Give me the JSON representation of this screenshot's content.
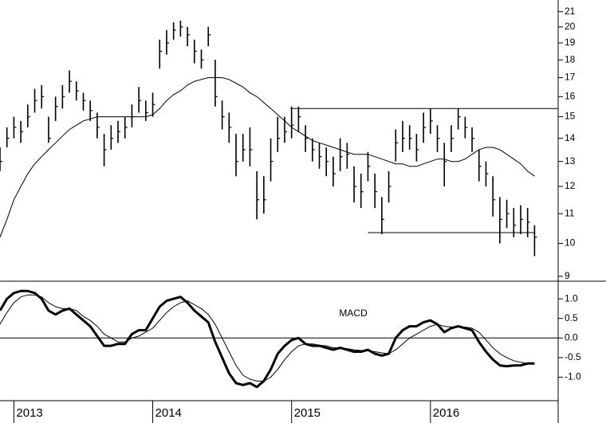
{
  "chart_data": [
    {
      "type": "ohlc",
      "scale": "log",
      "color": "#000000",
      "x": [
        2012.9,
        2012.95,
        2013.0,
        2013.05,
        2013.1,
        2013.15,
        2013.2,
        2013.25,
        2013.3,
        2013.35,
        2013.4,
        2013.45,
        2013.5,
        2013.55,
        2013.6,
        2013.65,
        2013.7,
        2013.75,
        2013.8,
        2013.85,
        2013.9,
        2013.95,
        2014.0,
        2014.05,
        2014.1,
        2014.15,
        2014.2,
        2014.25,
        2014.3,
        2014.35,
        2014.4,
        2014.45,
        2014.5,
        2014.55,
        2014.6,
        2014.65,
        2014.7,
        2014.75,
        2014.8,
        2014.85,
        2014.9,
        2014.95,
        2015.0,
        2015.05,
        2015.1,
        2015.15,
        2015.2,
        2015.25,
        2015.3,
        2015.35,
        2015.4,
        2015.45,
        2015.5,
        2015.55,
        2015.6,
        2015.65,
        2015.7,
        2015.75,
        2015.8,
        2015.85,
        2015.9,
        2015.95,
        2016.0,
        2016.05,
        2016.1,
        2016.15,
        2016.2,
        2016.25,
        2016.3,
        2016.35,
        2016.4,
        2016.45,
        2016.5,
        2016.55,
        2016.6,
        2016.65,
        2016.7,
        2016.75
      ],
      "high": [
        13.6,
        14.5,
        15.0,
        14.8,
        15.6,
        16.4,
        16.6,
        15.0,
        16.0,
        16.6,
        17.4,
        16.8,
        16.2,
        15.8,
        15.2,
        14.2,
        14.6,
        14.8,
        15.0,
        15.6,
        16.5,
        15.8,
        16.2,
        19.2,
        19.8,
        20.3,
        20.4,
        20.0,
        19.2,
        18.6,
        20.0,
        18.0,
        15.8,
        15.2,
        14.2,
        14.2,
        14.5,
        12.6,
        12.4,
        14.0,
        15.0,
        15.0,
        15.5,
        15.5,
        14.6,
        14.0,
        13.8,
        13.6,
        13.2,
        14.0,
        13.8,
        12.8,
        12.5,
        13.4,
        12.5,
        11.6,
        12.6,
        14.4,
        14.8,
        14.6,
        14.2,
        15.2,
        15.4,
        14.6,
        13.8,
        14.6,
        15.4,
        15.0,
        14.5,
        13.5,
        13.0,
        12.4,
        11.6,
        11.5,
        11.2,
        11.3,
        11.2,
        10.6
      ],
      "low": [
        12.6,
        13.6,
        14.0,
        13.8,
        14.5,
        15.2,
        15.4,
        13.8,
        14.8,
        15.4,
        16.2,
        15.8,
        15.3,
        14.8,
        14.0,
        12.8,
        13.5,
        13.8,
        14.0,
        14.5,
        15.2,
        14.8,
        15.0,
        17.5,
        18.3,
        19.2,
        19.4,
        18.8,
        17.8,
        17.5,
        18.8,
        15.5,
        14.4,
        13.8,
        12.4,
        13.0,
        12.8,
        10.8,
        11.0,
        12.2,
        13.4,
        13.8,
        14.0,
        14.3,
        13.4,
        13.0,
        12.7,
        12.4,
        12.0,
        12.6,
        12.7,
        11.4,
        11.2,
        12.2,
        11.2,
        10.3,
        11.4,
        13.0,
        13.4,
        13.5,
        13.0,
        13.8,
        14.2,
        13.4,
        12.0,
        13.4,
        14.4,
        14.0,
        13.4,
        12.2,
        12.0,
        10.9,
        10.0,
        10.5,
        10.2,
        10.3,
        10.2,
        9.6
      ],
      "close": [
        13.0,
        14.0,
        14.5,
        14.3,
        15.0,
        15.8,
        16.0,
        14.0,
        15.5,
        16.0,
        16.8,
        16.3,
        15.8,
        15.3,
        14.5,
        13.5,
        14.0,
        14.3,
        14.5,
        15.0,
        15.8,
        15.2,
        15.6,
        18.5,
        19.0,
        19.8,
        20.0,
        19.5,
        18.5,
        18.0,
        19.5,
        16.0,
        15.0,
        14.5,
        13.0,
        13.5,
        13.5,
        11.5,
        11.5,
        13.0,
        14.0,
        14.3,
        14.6,
        15.0,
        14.0,
        13.5,
        13.2,
        13.0,
        12.5,
        13.2,
        13.3,
        12.0,
        11.8,
        12.8,
        11.8,
        10.8,
        12.0,
        13.8,
        14.0,
        14.0,
        13.5,
        14.5,
        14.8,
        14.0,
        13.0,
        14.0,
        15.0,
        14.5,
        14.0,
        12.8,
        12.5,
        11.5,
        10.8,
        11.0,
        10.6,
        10.8,
        10.7,
        10.2
      ],
      "moving_average": [
        10.2,
        10.8,
        11.5,
        12.0,
        12.5,
        12.9,
        13.2,
        13.5,
        13.8,
        14.1,
        14.4,
        14.6,
        14.8,
        14.9,
        15.0,
        15.0,
        15.0,
        15.0,
        15.0,
        15.0,
        15.0,
        15.0,
        15.1,
        15.4,
        15.8,
        16.1,
        16.3,
        16.6,
        16.8,
        16.9,
        17.0,
        17.0,
        17.0,
        16.9,
        16.7,
        16.5,
        16.2,
        16.0,
        15.7,
        15.4,
        15.1,
        14.8,
        14.5,
        14.3,
        14.1,
        13.9,
        13.8,
        13.7,
        13.6,
        13.5,
        13.4,
        13.3,
        13.3,
        13.3,
        13.2,
        13.1,
        13.0,
        12.9,
        12.9,
        12.8,
        12.8,
        12.9,
        13.0,
        13.1,
        13.1,
        13.0,
        13.0,
        13.1,
        13.3,
        13.5,
        13.6,
        13.6,
        13.5,
        13.3,
        13.1,
        12.9,
        12.6,
        12.4
      ],
      "hlines": [
        {
          "value": 15.4,
          "from": 2014.99,
          "to": 2016.92
        },
        {
          "value": 10.35,
          "from": 2015.55,
          "to": 2016.75
        }
      ],
      "xlim": [
        2012.9,
        2016.92
      ],
      "ylim": [
        8.86,
        21.8
      ],
      "yticks": [
        9,
        10,
        11,
        12,
        13,
        14,
        15,
        16,
        17,
        18,
        19,
        20,
        21
      ]
    },
    {
      "type": "line",
      "color": "#000000",
      "annotation": "MACD",
      "zero_line": true,
      "x": [
        2012.9,
        2012.95,
        2013.0,
        2013.05,
        2013.1,
        2013.15,
        2013.2,
        2013.25,
        2013.3,
        2013.35,
        2013.4,
        2013.45,
        2013.5,
        2013.55,
        2013.6,
        2013.65,
        2013.7,
        2013.75,
        2013.8,
        2013.85,
        2013.9,
        2013.95,
        2014.0,
        2014.05,
        2014.1,
        2014.15,
        2014.2,
        2014.25,
        2014.3,
        2014.35,
        2014.4,
        2014.45,
        2014.5,
        2014.55,
        2014.6,
        2014.65,
        2014.7,
        2014.75,
        2014.8,
        2014.85,
        2014.9,
        2014.95,
        2015.0,
        2015.05,
        2015.1,
        2015.15,
        2015.2,
        2015.25,
        2015.3,
        2015.35,
        2015.4,
        2015.45,
        2015.5,
        2015.55,
        2015.6,
        2015.65,
        2015.7,
        2015.75,
        2015.8,
        2015.85,
        2015.9,
        2015.95,
        2016.0,
        2016.05,
        2016.1,
        2016.15,
        2016.2,
        2016.25,
        2016.3,
        2016.35,
        2016.4,
        2016.45,
        2016.5,
        2016.55,
        2016.6,
        2016.65,
        2016.7,
        2016.75
      ],
      "series": [
        {
          "color": "#000000",
          "line_width": 3,
          "values": [
            0.7,
            1.0,
            1.15,
            1.2,
            1.2,
            1.15,
            1.0,
            0.7,
            0.6,
            0.7,
            0.75,
            0.6,
            0.45,
            0.3,
            0.05,
            -0.2,
            -0.2,
            -0.15,
            -0.15,
            0.1,
            0.2,
            0.2,
            0.5,
            0.8,
            0.95,
            1.0,
            1.05,
            0.9,
            0.7,
            0.55,
            0.4,
            -0.1,
            -0.5,
            -0.9,
            -1.15,
            -1.2,
            -1.15,
            -1.25,
            -1.1,
            -0.8,
            -0.4,
            -0.2,
            -0.05,
            0.0,
            -0.15,
            -0.2,
            -0.2,
            -0.25,
            -0.3,
            -0.25,
            -0.3,
            -0.35,
            -0.35,
            -0.3,
            -0.4,
            -0.45,
            -0.4,
            0.0,
            0.2,
            0.3,
            0.3,
            0.4,
            0.45,
            0.35,
            0.15,
            0.25,
            0.3,
            0.25,
            0.2,
            -0.1,
            -0.35,
            -0.55,
            -0.7,
            -0.72,
            -0.7,
            -0.7,
            -0.65,
            -0.65
          ]
        },
        {
          "color": "#000000",
          "line_width": 1,
          "values": [
            0.35,
            0.65,
            0.9,
            1.05,
            1.1,
            1.1,
            1.05,
            0.9,
            0.8,
            0.75,
            0.75,
            0.7,
            0.55,
            0.45,
            0.3,
            0.1,
            0.0,
            -0.1,
            -0.1,
            0.0,
            0.05,
            0.15,
            0.25,
            0.45,
            0.65,
            0.8,
            0.9,
            0.95,
            0.85,
            0.75,
            0.6,
            0.35,
            0.0,
            -0.35,
            -0.7,
            -0.95,
            -1.05,
            -1.1,
            -1.1,
            -1.0,
            -0.8,
            -0.55,
            -0.35,
            -0.2,
            -0.15,
            -0.15,
            -0.18,
            -0.2,
            -0.25,
            -0.25,
            -0.27,
            -0.3,
            -0.32,
            -0.33,
            -0.35,
            -0.38,
            -0.4,
            -0.3,
            -0.15,
            0.0,
            0.1,
            0.2,
            0.3,
            0.35,
            0.3,
            0.28,
            0.28,
            0.28,
            0.25,
            0.15,
            -0.05,
            -0.25,
            -0.4,
            -0.5,
            -0.58,
            -0.62,
            -0.65,
            -0.65
          ]
        }
      ],
      "xlim": [
        2012.9,
        2016.92
      ],
      "ylim": [
        -1.6,
        1.45
      ],
      "yticks": [
        {
          "value": 1,
          "label": "1.0"
        },
        0.5,
        {
          "value": 0,
          "label": "0.0"
        },
        -0.5,
        {
          "value": -1,
          "label": "-1.0"
        }
      ],
      "xticks": [
        2013,
        2014,
        2015,
        2016
      ]
    }
  ]
}
